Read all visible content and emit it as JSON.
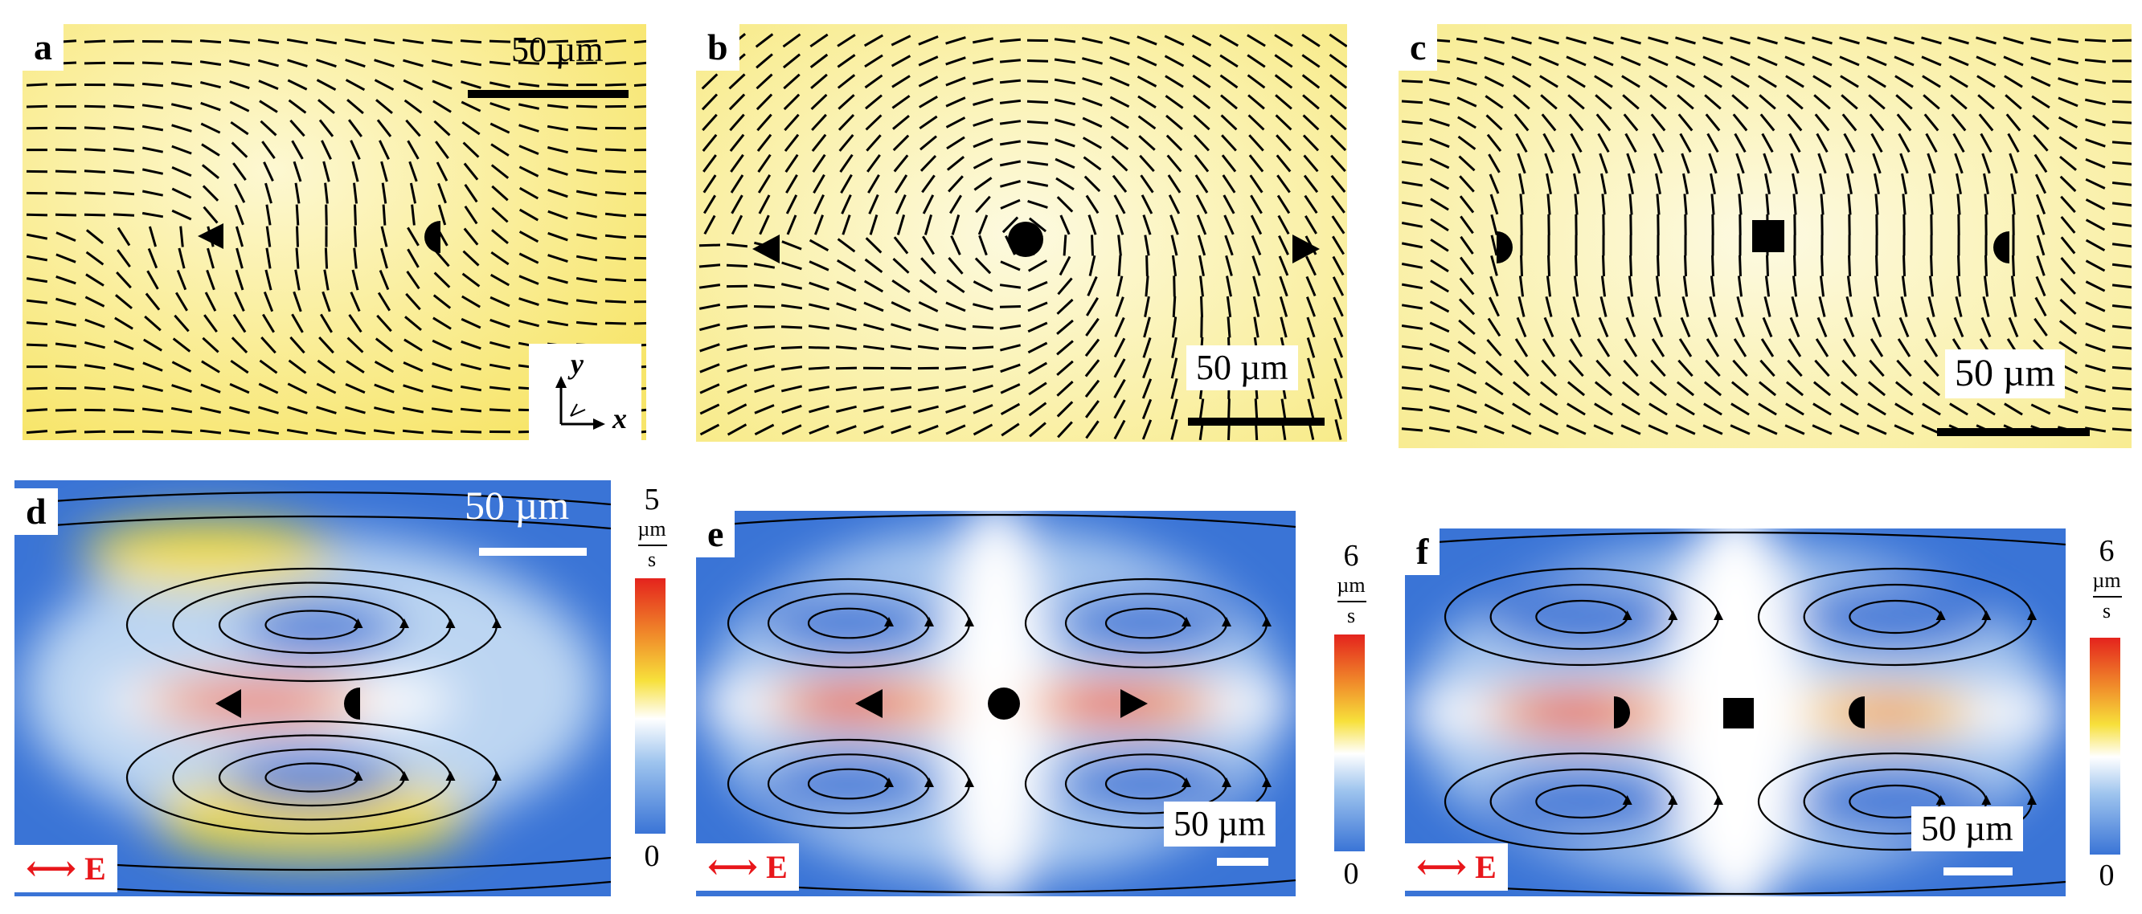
{
  "panels": {
    "a": {
      "label": "a",
      "scale": "50 µm"
    },
    "b": {
      "label": "b",
      "scale": "50 µm"
    },
    "c": {
      "label": "c",
      "scale": "50 µm"
    },
    "d": {
      "label": "d",
      "scale": "50 µm",
      "cmax": "5",
      "cmin": "0"
    },
    "e": {
      "label": "e",
      "scale": "50 µm",
      "cmax": "6",
      "cmin": "0"
    },
    "f": {
      "label": "f",
      "scale": "50 µm",
      "cmax": "6",
      "cmin": "0"
    }
  },
  "colorbar_unit": {
    "num": "µm",
    "den": "s"
  },
  "axes": {
    "x": "x",
    "y": "y"
  },
  "field_label": "E",
  "colors": {
    "director_bg": "#fbf4b8",
    "director_edge": "#f5e65a",
    "flow_low": "#3a74d6",
    "flow_high": "#e4231d",
    "efield": "#e8161a"
  }
}
